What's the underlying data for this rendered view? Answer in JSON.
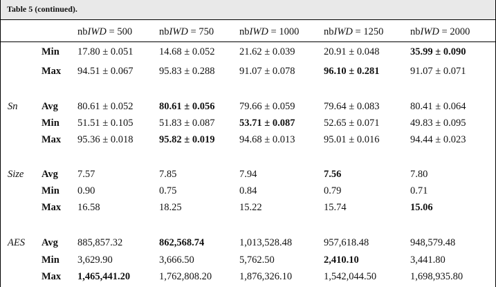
{
  "caption": "Table 5  (continued).",
  "columns": [
    {
      "prefix": "nb",
      "var": "IWD",
      "suffix": " = 500"
    },
    {
      "prefix": "nb",
      "var": "IWD",
      "suffix": " = 750"
    },
    {
      "prefix": "nb",
      "var": "IWD",
      "suffix": " = 1000"
    },
    {
      "prefix": "nb",
      "var": "IWD",
      "suffix": " = 1250"
    },
    {
      "prefix": "nb",
      "var": "IWD",
      "suffix": " = 2000"
    }
  ],
  "rows": [
    {
      "group": "",
      "stat": "Min",
      "values": [
        "17.80 ± 0.051",
        "14.68 ± 0.052",
        "21.62 ± 0.039",
        "20.91 ± 0.048",
        "35.99 ± 0.090"
      ],
      "bold": [
        false,
        false,
        false,
        false,
        true
      ]
    },
    {
      "group": "",
      "stat": "Max",
      "values": [
        "94.51 ± 0.067",
        "95.83 ± 0.288",
        "91.07 ± 0.078",
        "96.10 ± 0.281",
        "91.07 ± 0.071"
      ],
      "bold": [
        false,
        false,
        false,
        true,
        false
      ]
    },
    {
      "group": "Sn",
      "stat": "Avg",
      "values": [
        "80.61 ± 0.052",
        "80.61 ± 0.056",
        "79.66 ± 0.059",
        "79.64 ± 0.083",
        "80.41 ± 0.064"
      ],
      "bold": [
        false,
        true,
        false,
        false,
        false
      ]
    },
    {
      "group": "",
      "stat": "Min",
      "values": [
        "51.51 ± 0.105",
        "51.83 ± 0.087",
        "53.71 ± 0.087",
        "52.65 ± 0.071",
        "49.83 ± 0.095"
      ],
      "bold": [
        false,
        false,
        true,
        false,
        false
      ]
    },
    {
      "group": "",
      "stat": "Max",
      "values": [
        "95.36 ± 0.018",
        "95.82 ± 0.019",
        "94.68 ± 0.013",
        "95.01 ± 0.016",
        "94.44 ± 0.023"
      ],
      "bold": [
        false,
        true,
        false,
        false,
        false
      ]
    },
    {
      "group": "Size",
      "stat": "Avg",
      "values": [
        "7.57",
        "7.85",
        "7.94",
        "7.56",
        "7.80"
      ],
      "bold": [
        false,
        false,
        false,
        true,
        false
      ]
    },
    {
      "group": "",
      "stat": "Min",
      "values": [
        "0.90",
        "0.75",
        "0.84",
        "0.79",
        "0.71"
      ],
      "bold": [
        false,
        false,
        false,
        false,
        false
      ]
    },
    {
      "group": "",
      "stat": "Max",
      "values": [
        "16.58",
        "18.25",
        "15.22",
        "15.74",
        "15.06"
      ],
      "bold": [
        false,
        false,
        false,
        false,
        true
      ]
    },
    {
      "group": "AES",
      "stat": "Avg",
      "values": [
        "885,857.32",
        "862,568.74",
        "1,013,528.48",
        "957,618.48",
        "948,579.48"
      ],
      "bold": [
        false,
        true,
        false,
        false,
        false
      ]
    },
    {
      "group": "",
      "stat": "Min",
      "values": [
        "3,629.90",
        "3,666.50",
        "5,762.50",
        "2,410.10",
        "3,441.80"
      ],
      "bold": [
        false,
        false,
        false,
        true,
        false
      ]
    },
    {
      "group": "",
      "stat": "Max",
      "values": [
        "1,465,441.20",
        "1,762,808.20",
        "1,876,326.10",
        "1,542,044.50",
        "1,698,935.80"
      ],
      "bold": [
        true,
        false,
        false,
        false,
        false
      ]
    }
  ]
}
